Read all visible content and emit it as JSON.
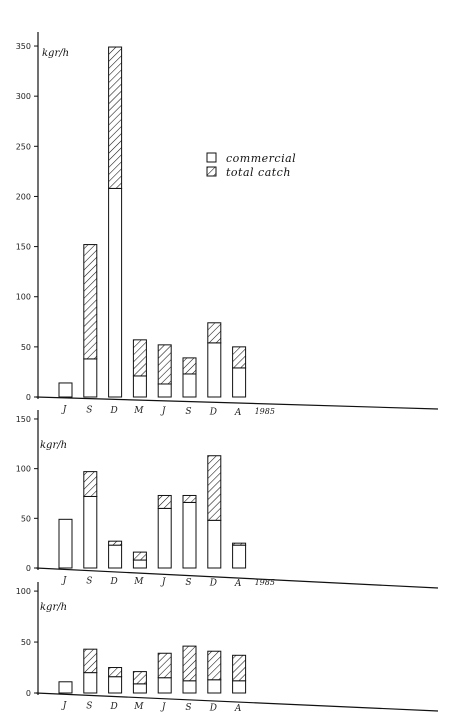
{
  "chart_data": [
    {
      "type": "bar",
      "stacked": true,
      "y_unit": "kgr/h",
      "ylim": [
        0,
        360
      ],
      "yticks": [
        0,
        50,
        100,
        150,
        200,
        250,
        300,
        350
      ],
      "categories": [
        "J",
        "S",
        "D",
        "M",
        "J",
        "S",
        "D",
        "A"
      ],
      "year_label": "1985",
      "year_after_index": 7,
      "series": [
        {
          "name": "commercial",
          "values": [
            14,
            38,
            208,
            21,
            13,
            23,
            54,
            29
          ]
        },
        {
          "name": "total catch",
          "values": [
            0,
            114,
            141,
            36,
            39,
            16,
            20,
            21
          ]
        }
      ],
      "legend": [
        "commercial",
        "total catch"
      ],
      "legend_position": "top-right",
      "grid": false
    },
    {
      "type": "bar",
      "stacked": true,
      "y_unit": "kgr/h",
      "ylim": [
        0,
        155
      ],
      "yticks": [
        0,
        50,
        100,
        150
      ],
      "categories": [
        "J",
        "S",
        "D",
        "M",
        "J",
        "S",
        "D",
        "A"
      ],
      "year_label": "1985",
      "year_after_index": 7,
      "series": [
        {
          "name": "commercial",
          "values": [
            49,
            72,
            23,
            8,
            60,
            66,
            48,
            23
          ]
        },
        {
          "name": "total catch",
          "values": [
            0,
            25,
            4,
            8,
            13,
            7,
            65,
            2
          ]
        }
      ],
      "grid": false
    },
    {
      "type": "bar",
      "stacked": true,
      "y_unit": "kgr/h",
      "ylim": [
        0,
        105
      ],
      "yticks": [
        0,
        50,
        100
      ],
      "categories": [
        "J",
        "S",
        "D",
        "M",
        "J",
        "S",
        "D",
        "A"
      ],
      "year_label": "",
      "series": [
        {
          "name": "commercial",
          "values": [
            11,
            20,
            16,
            9,
            15,
            12,
            13,
            12
          ]
        },
        {
          "name": "total catch",
          "values": [
            0,
            23,
            9,
            12,
            24,
            34,
            28,
            25
          ]
        }
      ],
      "grid": false
    }
  ],
  "legend_labels": [
    "commercial",
    "total catch"
  ]
}
